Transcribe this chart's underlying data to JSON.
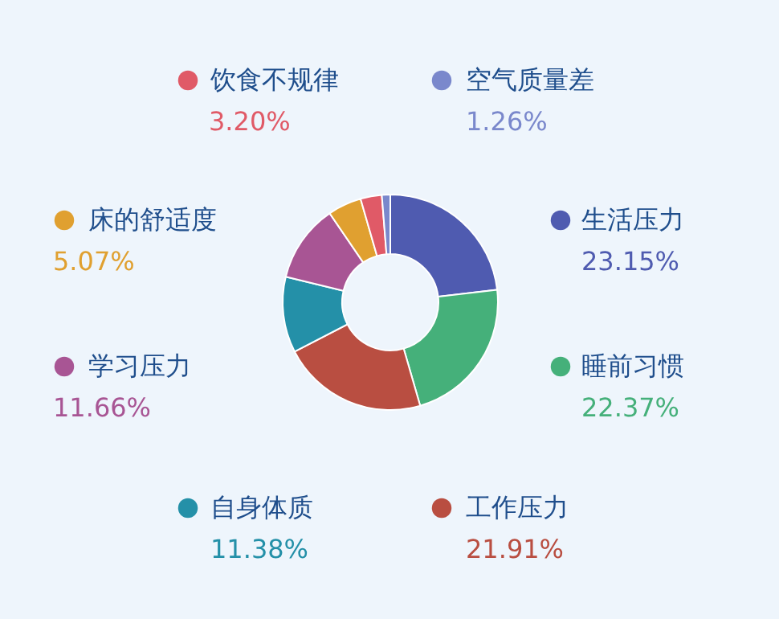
{
  "chart_data": {
    "type": "donut",
    "legend": "left",
    "categories": [
      "生活压力",
      "睡前习惯",
      "工作压力",
      "自身体质",
      "学习压力",
      "床的舒适度",
      "饮食不规律",
      "空气质量差"
    ],
    "values": [
      23.15,
      22.37,
      21.91,
      11.38,
      11.66,
      5.07,
      3.2,
      1.26
    ],
    "value_labels": [
      "23.15%",
      "22.37%",
      "21.91%",
      "11.38%",
      "11.66%",
      "5.07%",
      "3.20%",
      "1.26%"
    ],
    "colors": [
      "#4f5bb0",
      "#45b07a",
      "#b94e41",
      "#2490a8",
      "#a85594",
      "#e0a030",
      "#e05a67",
      "#7a88cc"
    ]
  }
}
